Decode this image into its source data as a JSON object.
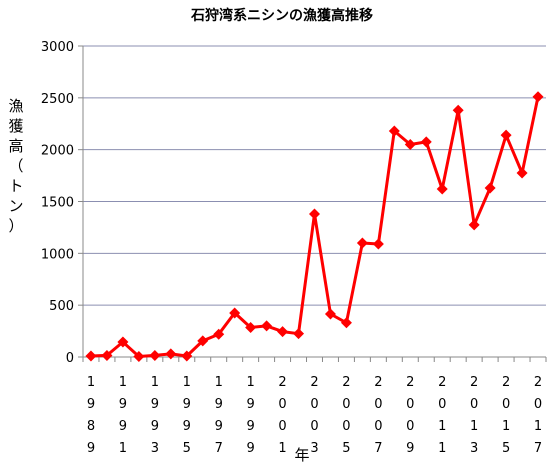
{
  "chart_data": {
    "type": "line",
    "title": "石狩湾系ニシンの漁獲高推移",
    "ylabel": "漁獲高（トン）",
    "xlabel": "年",
    "ylim": [
      0,
      3000
    ],
    "yticks": [
      0,
      500,
      1000,
      1500,
      2000,
      2500,
      3000
    ],
    "grid": true,
    "legend": "none",
    "line_color": "#ff0000",
    "marker": "diamond",
    "x": [
      1989,
      1990,
      1991,
      1992,
      1993,
      1994,
      1995,
      1996,
      1997,
      1998,
      1999,
      2000,
      2001,
      2002,
      2003,
      2004,
      2005,
      2006,
      2007,
      2008,
      2009,
      2010,
      2011,
      2012,
      2013,
      2014,
      2015,
      2016,
      2017
    ],
    "x_tick_labels": [
      "1989",
      "1991",
      "1993",
      "1995",
      "1997",
      "1999",
      "2001",
      "2003",
      "2005",
      "2007",
      "2009",
      "2011",
      "2013",
      "2015",
      "2017"
    ],
    "values": [
      10,
      15,
      145,
      5,
      15,
      30,
      10,
      155,
      220,
      425,
      285,
      300,
      245,
      225,
      1380,
      415,
      330,
      1100,
      1090,
      2180,
      2050,
      2075,
      1620,
      2380,
      1275,
      1630,
      2140,
      1775,
      2510
    ]
  }
}
